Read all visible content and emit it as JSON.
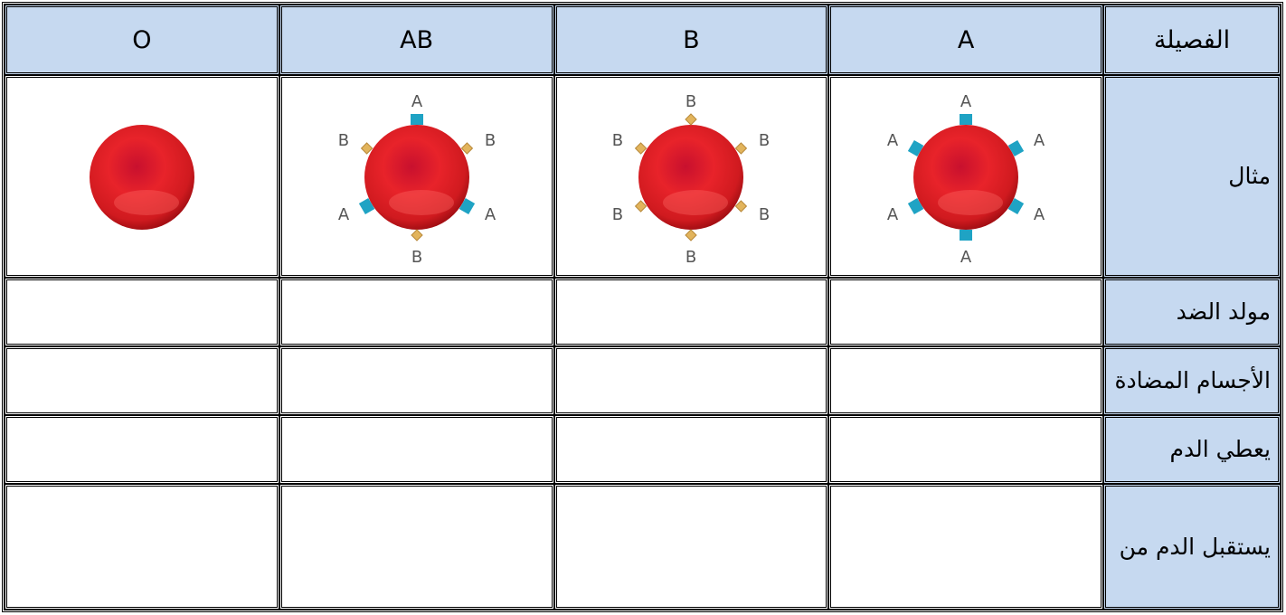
{
  "table": {
    "header": [
      "الفصيلة",
      "A",
      "B",
      "AB",
      "O"
    ],
    "rows": [
      {
        "label": "مثال",
        "cells": [
          {
            "markers": [
              "A",
              "A",
              "A",
              "A",
              "A",
              "A"
            ]
          },
          {
            "markers": [
              "B",
              "B",
              "B",
              "B",
              "B",
              "B"
            ]
          },
          {
            "markers": [
              "A",
              "B",
              "A",
              "B",
              "A",
              "B"
            ]
          },
          {
            "markers": []
          }
        ]
      },
      {
        "label": "مولد الضد"
      },
      {
        "label": "الأجسام المضادة"
      },
      {
        "label": "يعطي الدم"
      },
      {
        "label": "يستقبل الدم من"
      }
    ]
  }
}
